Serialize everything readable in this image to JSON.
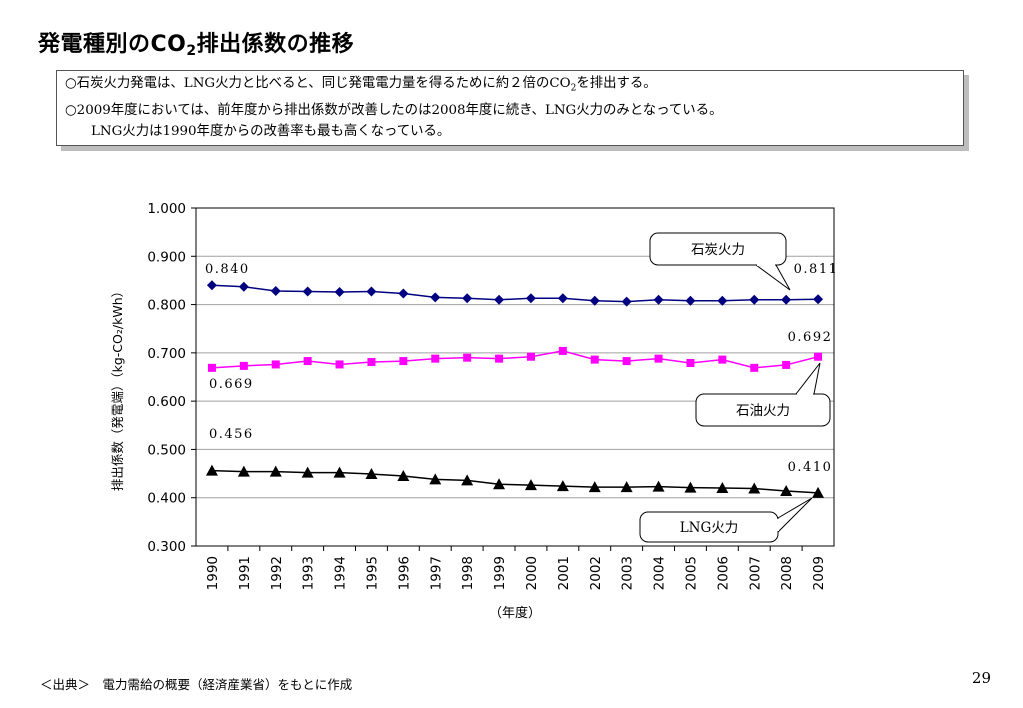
{
  "header": {
    "title_main": "発電種別のCO",
    "title_sub": "2",
    "title_tail": "排出係数の推移"
  },
  "notes": {
    "line1_pre": "○石炭火力発電は、LNG火力と比べると、同じ発電電力量を得るために約２倍のCO",
    "line1_sub": "2",
    "line1_post": "を排出する。",
    "line2": "○2009年度においては、前年度から排出係数が改善したのは2008年度に続き、LNG火力のみとなっている。",
    "line3": "LNG火力は1990年度からの改善率も最も高くなっている。"
  },
  "chart_data": {
    "type": "line",
    "ylabel": "排出係数（発電端）（kg-CO₂/kWh）",
    "xlabel": "（年度）",
    "ylim": [
      0.3,
      1.0
    ],
    "yticks": [
      "0.300",
      "0.400",
      "0.500",
      "0.600",
      "0.700",
      "0.800",
      "0.900",
      "1.000"
    ],
    "grid": true,
    "categories": [
      "1990",
      "1991",
      "1992",
      "1993",
      "1994",
      "1995",
      "1996",
      "1997",
      "1998",
      "1999",
      "2000",
      "2001",
      "2002",
      "2003",
      "2004",
      "2005",
      "2006",
      "2007",
      "2008",
      "2009"
    ],
    "series": [
      {
        "name": "石炭火力",
        "color": "#000080",
        "marker": "diamond",
        "values": [
          0.84,
          0.837,
          0.828,
          0.827,
          0.826,
          0.827,
          0.823,
          0.815,
          0.813,
          0.81,
          0.813,
          0.813,
          0.808,
          0.806,
          0.81,
          0.808,
          0.808,
          0.81,
          0.81,
          0.811
        ],
        "start_label": "0.840",
        "end_label": "0.811",
        "callout": "石炭火力"
      },
      {
        "name": "石油火力",
        "color": "#ff00ff",
        "marker": "square",
        "values": [
          0.669,
          0.673,
          0.676,
          0.683,
          0.676,
          0.681,
          0.683,
          0.688,
          0.69,
          0.688,
          0.692,
          0.704,
          0.686,
          0.683,
          0.688,
          0.679,
          0.686,
          0.669,
          0.675,
          0.692
        ],
        "start_label": "0.669",
        "end_label": "0.692",
        "callout": "石油火力"
      },
      {
        "name": "LNG火力",
        "color": "#000000",
        "marker": "triangle",
        "values": [
          0.456,
          0.454,
          0.454,
          0.452,
          0.452,
          0.449,
          0.445,
          0.438,
          0.436,
          0.428,
          0.426,
          0.424,
          0.422,
          0.422,
          0.423,
          0.421,
          0.42,
          0.419,
          0.414,
          0.41
        ],
        "start_label": "0.456",
        "end_label": "0.410",
        "callout": "LNG火力"
      }
    ]
  },
  "footer": {
    "source": "＜出典＞　電力需給の概要（経済産業省）をもとに作成",
    "page": "29"
  }
}
